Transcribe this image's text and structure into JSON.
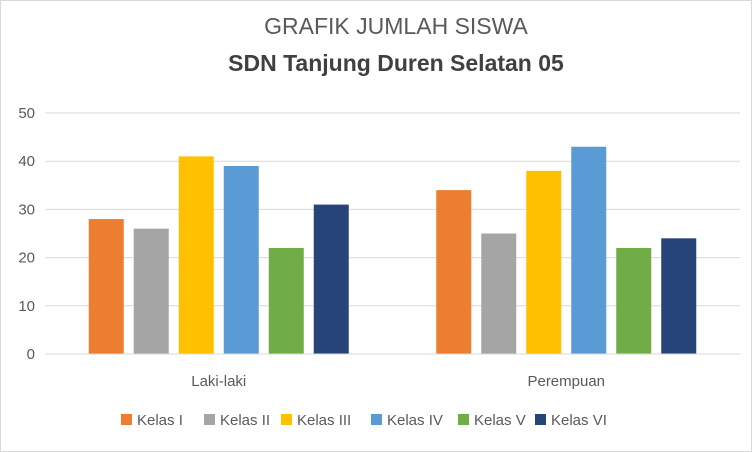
{
  "chart_data": {
    "type": "bar",
    "title": "GRAFIK JUMLAH SISWA",
    "subtitle": "SDN Tanjung Duren Selatan 05",
    "categories": [
      "Laki-laki",
      "Perempuan"
    ],
    "series": [
      {
        "name": "Kelas I",
        "color": "#ED7D31",
        "values": [
          28,
          34
        ]
      },
      {
        "name": "Kelas II",
        "color": "#A5A5A5",
        "values": [
          26,
          25
        ]
      },
      {
        "name": "Kelas III",
        "color": "#FFC000",
        "values": [
          41,
          38
        ]
      },
      {
        "name": "Kelas IV",
        "color": "#5B9BD5",
        "values": [
          39,
          43
        ]
      },
      {
        "name": "Kelas V",
        "color": "#70AD47",
        "values": [
          22,
          22
        ]
      },
      {
        "name": "Kelas VI",
        "color": "#264478",
        "values": [
          31,
          24
        ]
      }
    ],
    "ylim": [
      0,
      50
    ],
    "yticks": [
      0,
      10,
      20,
      30,
      40,
      50
    ],
    "grid": true,
    "legend_position": "bottom"
  }
}
